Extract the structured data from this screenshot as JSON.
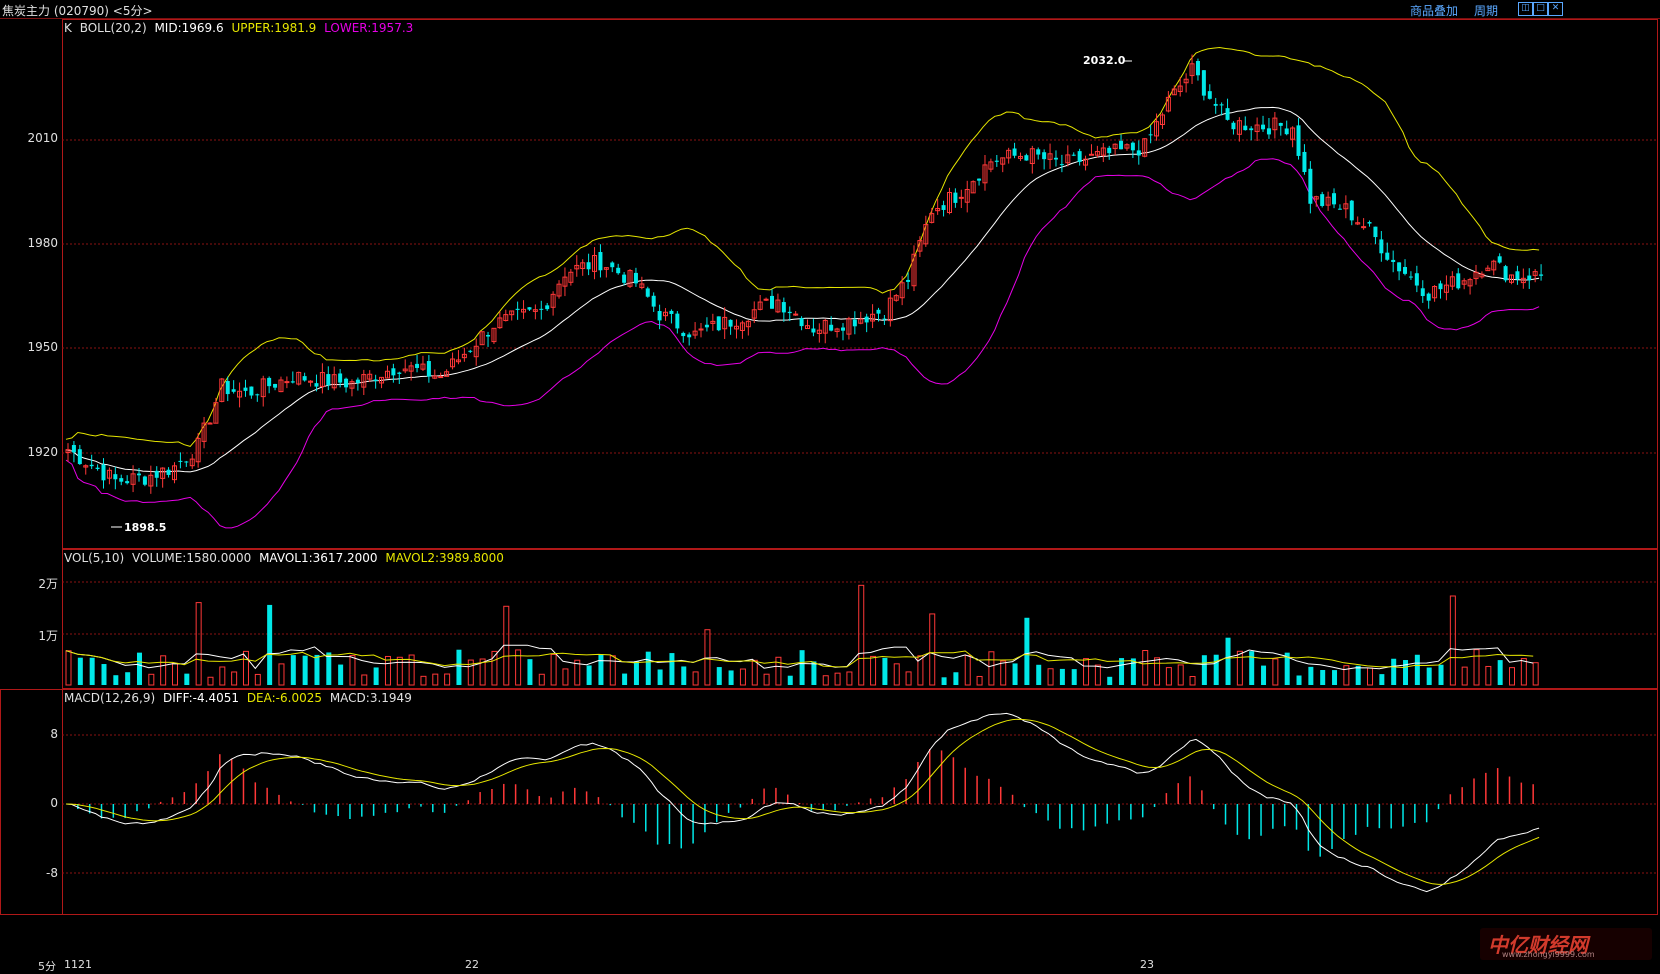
{
  "window": {
    "title": "焦炭主力 (020790) <5分>",
    "link1": "商品叠加",
    "link2": "周期",
    "btn_restore": "◫",
    "btn_max": "□",
    "btn_close": "✕"
  },
  "colors": {
    "up": "#ff3838",
    "down": "#00e8e8",
    "mid": "#ffffff",
    "upper": "#e6e600",
    "lower": "#e600e6",
    "grid": "#8a1212",
    "border": "#b01818"
  },
  "kline": {
    "header": {
      "k": "K",
      "name": "BOLL(20,2)",
      "mid": "MID:1969.6",
      "upper": "UPPER:1981.9",
      "lower": "LOWER:1957.3"
    },
    "y_ticks": [
      "2010",
      "1980",
      "1950",
      "1920"
    ],
    "annotation_high": "2032.0",
    "annotation_low": "1898.5"
  },
  "volume": {
    "header": {
      "name": "VOL(5,10)",
      "volume": "VOLUME:1580.0000",
      "mavol1": "MAVOL1:3617.2000",
      "mavol2": "MAVOL2:3989.8000"
    },
    "y_ticks": [
      "2万",
      "1万"
    ]
  },
  "macd": {
    "header": {
      "name": "MACD(12,26,9)",
      "diff": "DIFF:-4.4051",
      "dea": "DEA:-6.0025",
      "macd": "MACD:3.1949"
    },
    "y_ticks": [
      "8",
      "0",
      "-8"
    ]
  },
  "x_axis": {
    "period": "5分",
    "labels": [
      "1121",
      "22",
      "23"
    ]
  },
  "watermark": {
    "main": "中亿财经网",
    "sub": "www.zhongyi9999.com"
  }
}
